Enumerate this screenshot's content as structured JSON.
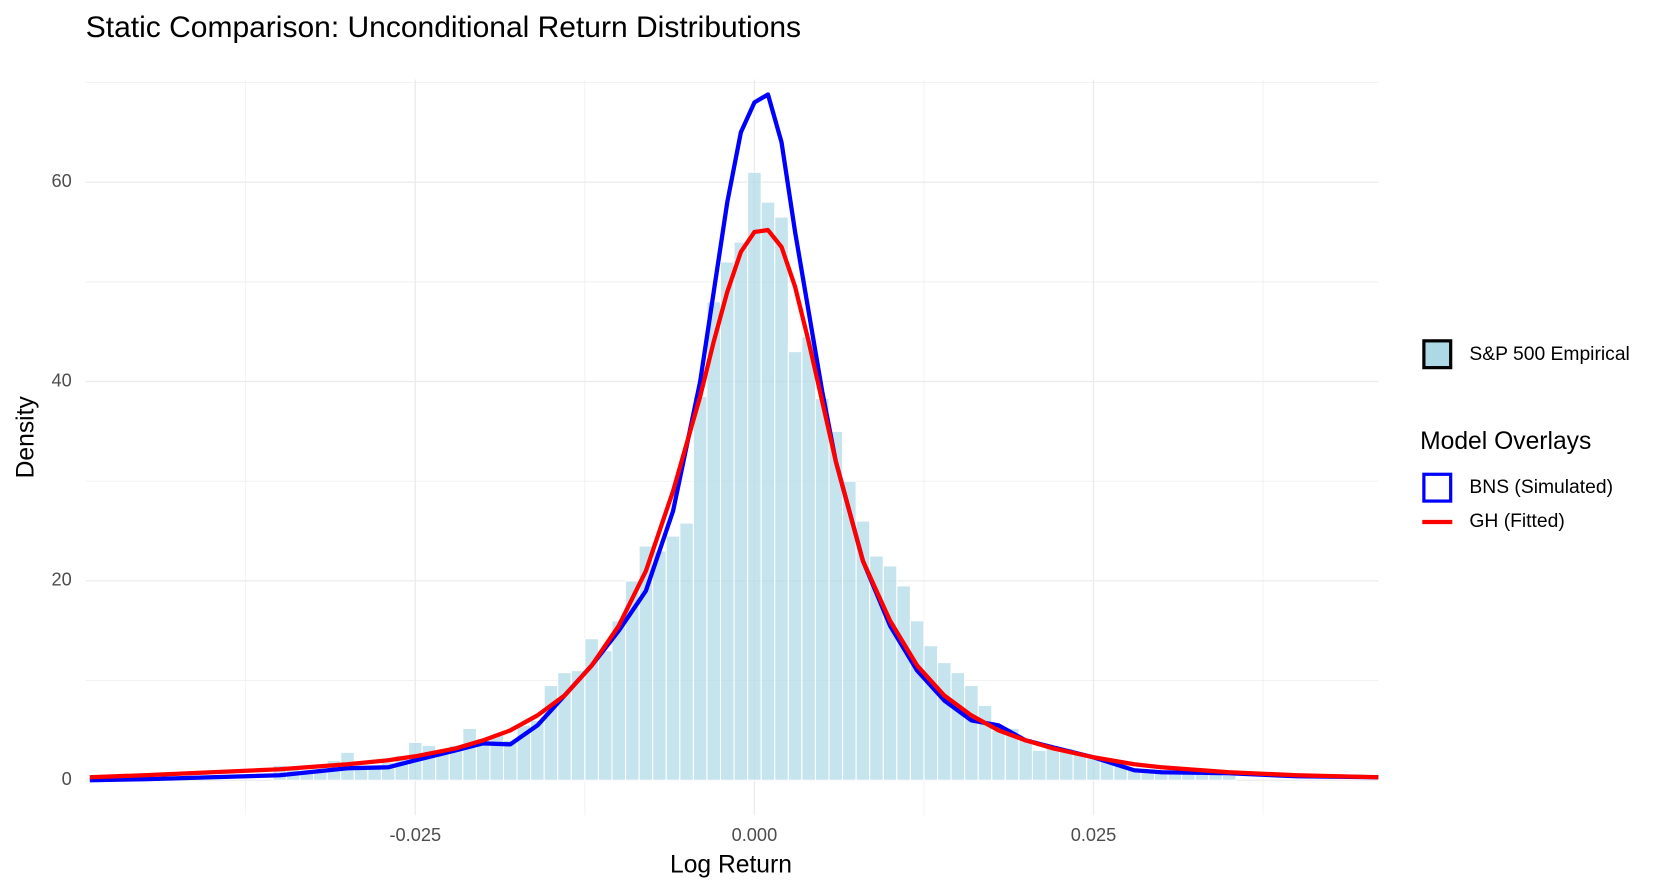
{
  "chart_data": {
    "type": "histogram",
    "title": "Static Comparison: Unconditional Return Distributions",
    "x_label": "Log Return",
    "y_label": "Density",
    "legend_title": "Model Overlays",
    "legend_position": "right",
    "grid": true,
    "xlim": [
      -0.0493,
      0.046
    ],
    "ylim": [
      -3.5,
      70.3
    ],
    "xticks": [
      -0.025,
      {
        "value": 0,
        "label": "0.000"
      },
      0.025
    ],
    "yticks": [
      0,
      20,
      40,
      60
    ],
    "x_minor_grid": [
      -0.0375,
      -0.0125,
      0.0125,
      0.0375
    ],
    "y_minor_grid": [
      10,
      30,
      50,
      70
    ],
    "histogram": {
      "name": "S&P 500 Empirical",
      "color": "#add8e6",
      "edge_color": "#ffffff",
      "bins": [
        -0.0355,
        -0.0345,
        -0.0335,
        -0.0325,
        -0.0315,
        -0.0305,
        -0.0295,
        -0.0285,
        -0.0275,
        -0.0265,
        -0.0255,
        -0.0245,
        -0.0235,
        -0.0225,
        -0.0215,
        -0.0205,
        -0.0195,
        -0.0185,
        -0.0175,
        -0.0165,
        -0.0155,
        -0.0145,
        -0.0135,
        -0.0125,
        -0.0115,
        -0.0105,
        -0.0095,
        -0.0085,
        -0.0075,
        -0.0065,
        -0.0055,
        -0.0045,
        -0.0035,
        -0.0025,
        -0.0015,
        -0.0005,
        0.0005,
        0.0015,
        0.0025,
        0.0035,
        0.0045,
        0.0055,
        0.0065,
        0.0075,
        0.0085,
        0.0095,
        0.0105,
        0.0115,
        0.0125,
        0.0135,
        0.0145,
        0.0155,
        0.0165,
        0.0175,
        0.0185,
        0.0195,
        0.0205,
        0.0215,
        0.0225,
        0.0235,
        0.0245,
        0.0255,
        0.0265,
        0.0275,
        0.0285,
        0.0295,
        0.0305,
        0.0315,
        0.0325,
        0.0335,
        0.0345,
        0.0355
      ],
      "counts": [
        1.5,
        1.2,
        0.8,
        1.0,
        2.0,
        2.8,
        1.5,
        1.3,
        1.8,
        2.5,
        3.8,
        3.5,
        2.8,
        3.5,
        5.2,
        4.2,
        4.5,
        4.0,
        5.5,
        6.0,
        9.5,
        10.8,
        11.0,
        14.2,
        13.0,
        16.0,
        20.0,
        23.5,
        23.0,
        24.5,
        25.8,
        38.5,
        48,
        52,
        54,
        61,
        58,
        56.5,
        43,
        44.5,
        38.3,
        35,
        30,
        26,
        22.5,
        21.5,
        19.5,
        16,
        13.5,
        11.8,
        10.8,
        9.5,
        7.5,
        5,
        5.2,
        4.2,
        3,
        3.5,
        3.2,
        2.8,
        2.2,
        2,
        1.8,
        1.2,
        0.9,
        0.8,
        1.0,
        0.8,
        0.7,
        0.6,
        0.5
      ]
    },
    "series": [
      {
        "name": "BNS (Simulated)",
        "type": "line",
        "color": "#0000ff",
        "x": [
          -0.049,
          -0.045,
          -0.04,
          -0.035,
          -0.03,
          -0.027,
          -0.025,
          -0.022,
          -0.02,
          -0.018,
          -0.016,
          -0.014,
          -0.012,
          -0.01,
          -0.008,
          -0.006,
          -0.004,
          -0.003,
          -0.002,
          -0.001,
          0,
          0.001,
          0.002,
          0.003,
          0.004,
          0.005,
          0.006,
          0.008,
          0.01,
          0.012,
          0.014,
          0.016,
          0.018,
          0.02,
          0.022,
          0.025,
          0.028,
          0.03,
          0.035,
          0.04,
          0.046
        ],
        "values": [
          0,
          0.1,
          0.3,
          0.5,
          1.2,
          1.3,
          2.0,
          3.0,
          3.7,
          3.6,
          5.5,
          8.5,
          11.5,
          15,
          19,
          27,
          40,
          49,
          58,
          65,
          68,
          68.8,
          64,
          55,
          47,
          39,
          32,
          22,
          15.5,
          11,
          8,
          6,
          5.5,
          4,
          3.3,
          2.3,
          1,
          0.8,
          0.7,
          0.4,
          0.3
        ]
      },
      {
        "name": "GH (Fitted)",
        "type": "line",
        "color": "#ff0000",
        "x": [
          -0.049,
          -0.045,
          -0.04,
          -0.035,
          -0.03,
          -0.027,
          -0.025,
          -0.022,
          -0.02,
          -0.018,
          -0.016,
          -0.014,
          -0.012,
          -0.01,
          -0.008,
          -0.006,
          -0.004,
          -0.003,
          -0.002,
          -0.001,
          0,
          0.001,
          0.002,
          0.003,
          0.004,
          0.005,
          0.006,
          0.008,
          0.01,
          0.012,
          0.014,
          0.016,
          0.018,
          0.02,
          0.022,
          0.025,
          0.028,
          0.03,
          0.035,
          0.04,
          0.046
        ],
        "values": [
          0.3,
          0.5,
          0.8,
          1.1,
          1.6,
          2.0,
          2.4,
          3.2,
          4.0,
          5.0,
          6.5,
          8.5,
          11.5,
          15.5,
          21,
          29,
          38.5,
          44,
          49,
          53,
          55,
          55.2,
          53.5,
          49.5,
          44,
          38,
          32,
          22,
          16,
          11.5,
          8.5,
          6.5,
          5,
          4.0,
          3.2,
          2.3,
          1.6,
          1.3,
          0.8,
          0.5,
          0.3
        ]
      }
    ]
  }
}
